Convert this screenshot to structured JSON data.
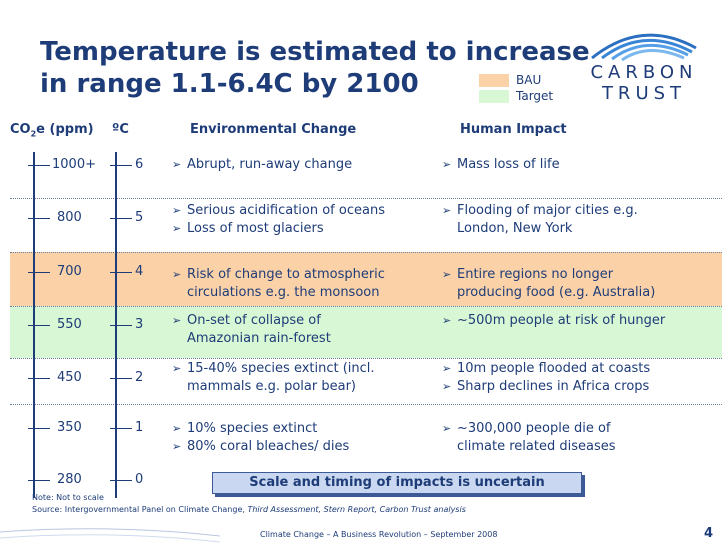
{
  "slide": {
    "title_line1": "Temperature is estimated to increase",
    "title_line2": "in range 1.1-6.4C by 2100",
    "logo_line1": "CARBON",
    "logo_line2": "TRUST",
    "legend": [
      {
        "label": "BAU",
        "color": "#fbd2a8"
      },
      {
        "label": "Target",
        "color": "#d8f7d4"
      }
    ],
    "headers": {
      "co2_prefix": "CO",
      "co2_sub": "2",
      "co2_suffix": "e (ppm)",
      "temp": "ºC",
      "env": "Environmental Change",
      "human": "Human Impact"
    },
    "rows": [
      {
        "co2": "1000+",
        "temp": "6",
        "env": [
          "Abrupt, run-away change"
        ],
        "human": [
          "Mass loss of life"
        ]
      },
      {
        "co2": "800",
        "temp": "5",
        "env": [
          "Serious acidification of oceans",
          "Loss of most glaciers"
        ],
        "human": [
          "Flooding of major cities e.g.",
          "London, New York"
        ]
      },
      {
        "co2": "700",
        "temp": "4",
        "env": [
          "Risk of change to atmospheric",
          "circulations e.g. the monsoon"
        ],
        "human": [
          "Entire regions no longer",
          "producing food (e.g. Australia)"
        ]
      },
      {
        "co2": "550",
        "temp": "3",
        "env": [
          "On-set of collapse of",
          "Amazonian rain-forest"
        ],
        "human": [
          "~500m people at risk of hunger"
        ]
      },
      {
        "co2": "450",
        "temp": "2",
        "env": [
          "15-40% species extinct (incl.",
          "mammals e.g. polar bear)"
        ],
        "human": [
          "10m people flooded at coasts",
          "Sharp declines in Africa crops"
        ]
      },
      {
        "co2": "350",
        "temp": "1",
        "env": [
          "10% species extinct",
          "80% coral bleaches/ dies"
        ],
        "human": [
          "~300,000 people die of",
          "climate related diseases"
        ]
      },
      {
        "co2": "280",
        "temp": "0",
        "env": [],
        "human": []
      }
    ],
    "callout": "Scale and timing of impacts is uncertain",
    "note": "Note: Not to scale",
    "source_prefix": "Source: Intergovernmental Panel on Climate Change, ",
    "source_italic": "Third Assessment, Stern Report, Carbon Trust analysis",
    "footer": "Climate Change – A Business Revolution – September 2008",
    "page_number": "4"
  }
}
